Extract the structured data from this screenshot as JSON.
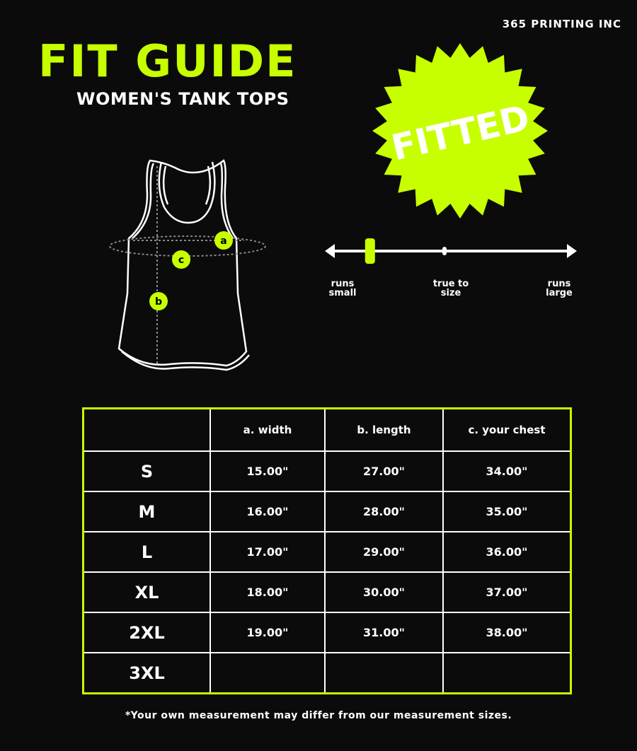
{
  "brand": "365 PRINTING INC",
  "title": "FIT GUIDE",
  "subtitle": "WOMEN'S TANK TOPS",
  "badge": {
    "text": "FITTED"
  },
  "diagram": {
    "markers": [
      "a",
      "b",
      "c"
    ]
  },
  "fit_scale": {
    "labels": {
      "left": "runs\nsmall",
      "middle": "true to\nsize",
      "right": "runs\nlarge"
    },
    "left_lines": [
      "runs",
      "small"
    ],
    "middle_lines": [
      "true to",
      "size"
    ],
    "right_lines": [
      "runs",
      "large"
    ],
    "fit_position": 0.17
  },
  "colors": {
    "accent": "#c8ff00",
    "background": "#0b0b0b"
  },
  "table": {
    "headers": [
      "",
      "a. width",
      "b. length",
      "c. your chest"
    ],
    "rows": [
      {
        "size": "S",
        "width": "15.00\"",
        "length": "27.00\"",
        "chest": "34.00\""
      },
      {
        "size": "M",
        "width": "16.00\"",
        "length": "28.00\"",
        "chest": "35.00\""
      },
      {
        "size": "L",
        "width": "17.00\"",
        "length": "29.00\"",
        "chest": "36.00\""
      },
      {
        "size": "XL",
        "width": "18.00\"",
        "length": "30.00\"",
        "chest": "37.00\""
      },
      {
        "size": "2XL",
        "width": "19.00\"",
        "length": "31.00\"",
        "chest": "38.00\""
      },
      {
        "size": "3XL",
        "width": "",
        "length": "",
        "chest": ""
      }
    ]
  },
  "footnote": "*Your own measurement may differ from our measurement sizes."
}
